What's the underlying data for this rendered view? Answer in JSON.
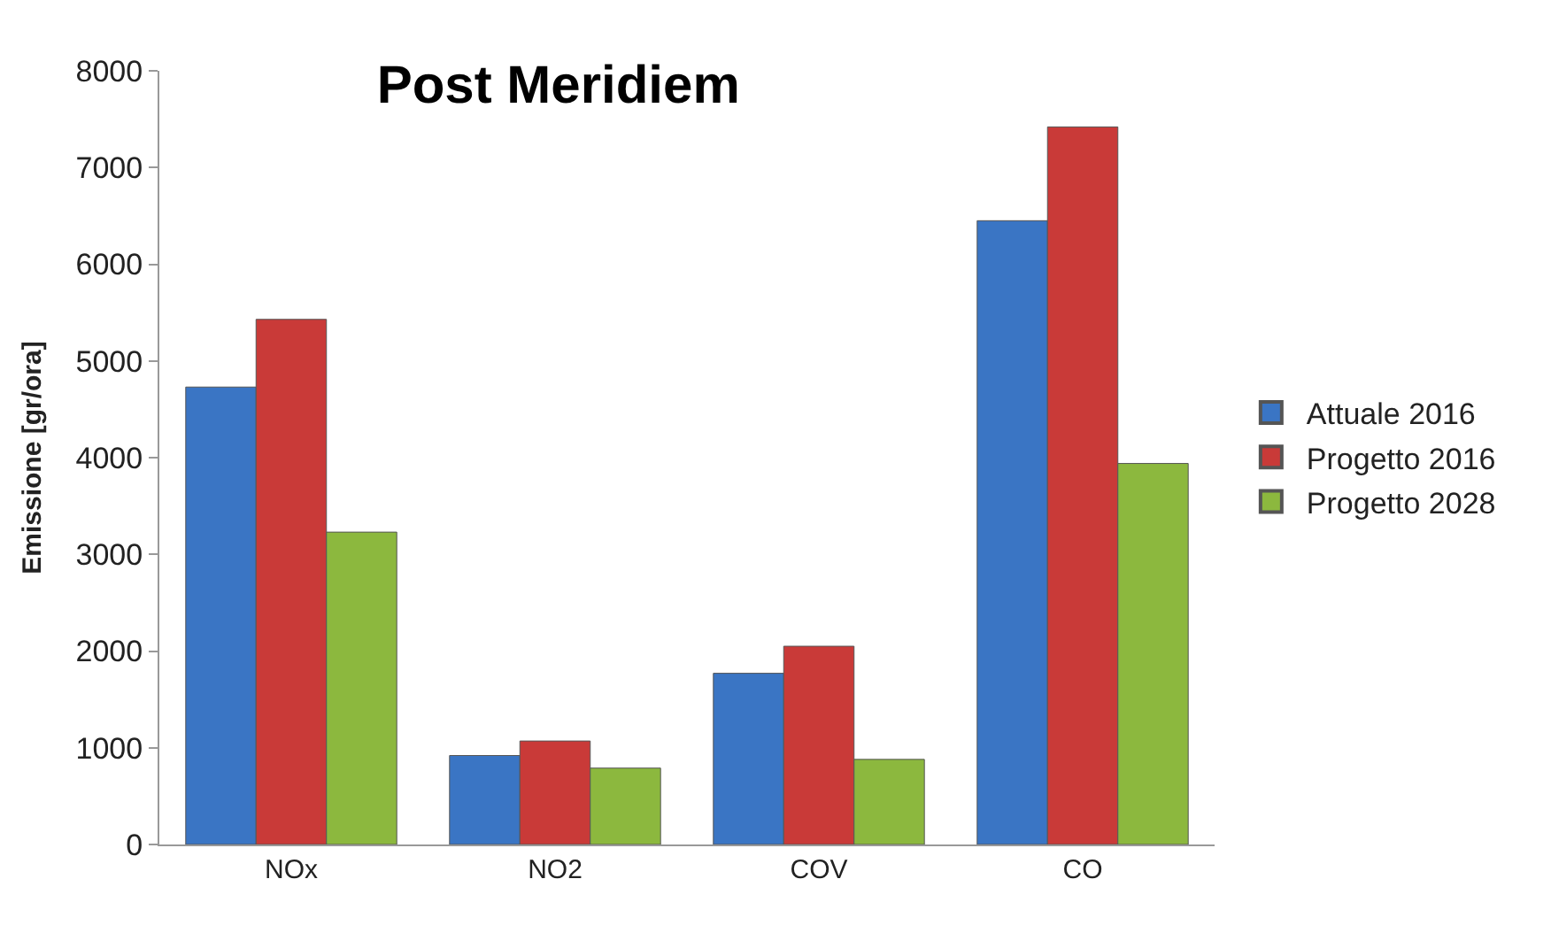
{
  "chart_data": {
    "type": "bar",
    "title": "Post Meridiem",
    "ylabel": "Emissione [gr/ora]",
    "categories": [
      "NOx",
      "NO2",
      "COV",
      "CO"
    ],
    "series": [
      {
        "name": "Attuale 2016",
        "color": "#3a75c4",
        "values": [
          4730,
          920,
          1770,
          6450
        ]
      },
      {
        "name": "Progetto 2016",
        "color": "#c93a38",
        "values": [
          5430,
          1070,
          2050,
          7420
        ]
      },
      {
        "name": "Progetto 2028",
        "color": "#8cb83e",
        "values": [
          3230,
          790,
          880,
          3940
        ]
      }
    ],
    "ylim": [
      0,
      8000
    ],
    "yticks": [
      0,
      1000,
      2000,
      3000,
      4000,
      5000,
      6000,
      7000,
      8000
    ],
    "legend": "right"
  }
}
